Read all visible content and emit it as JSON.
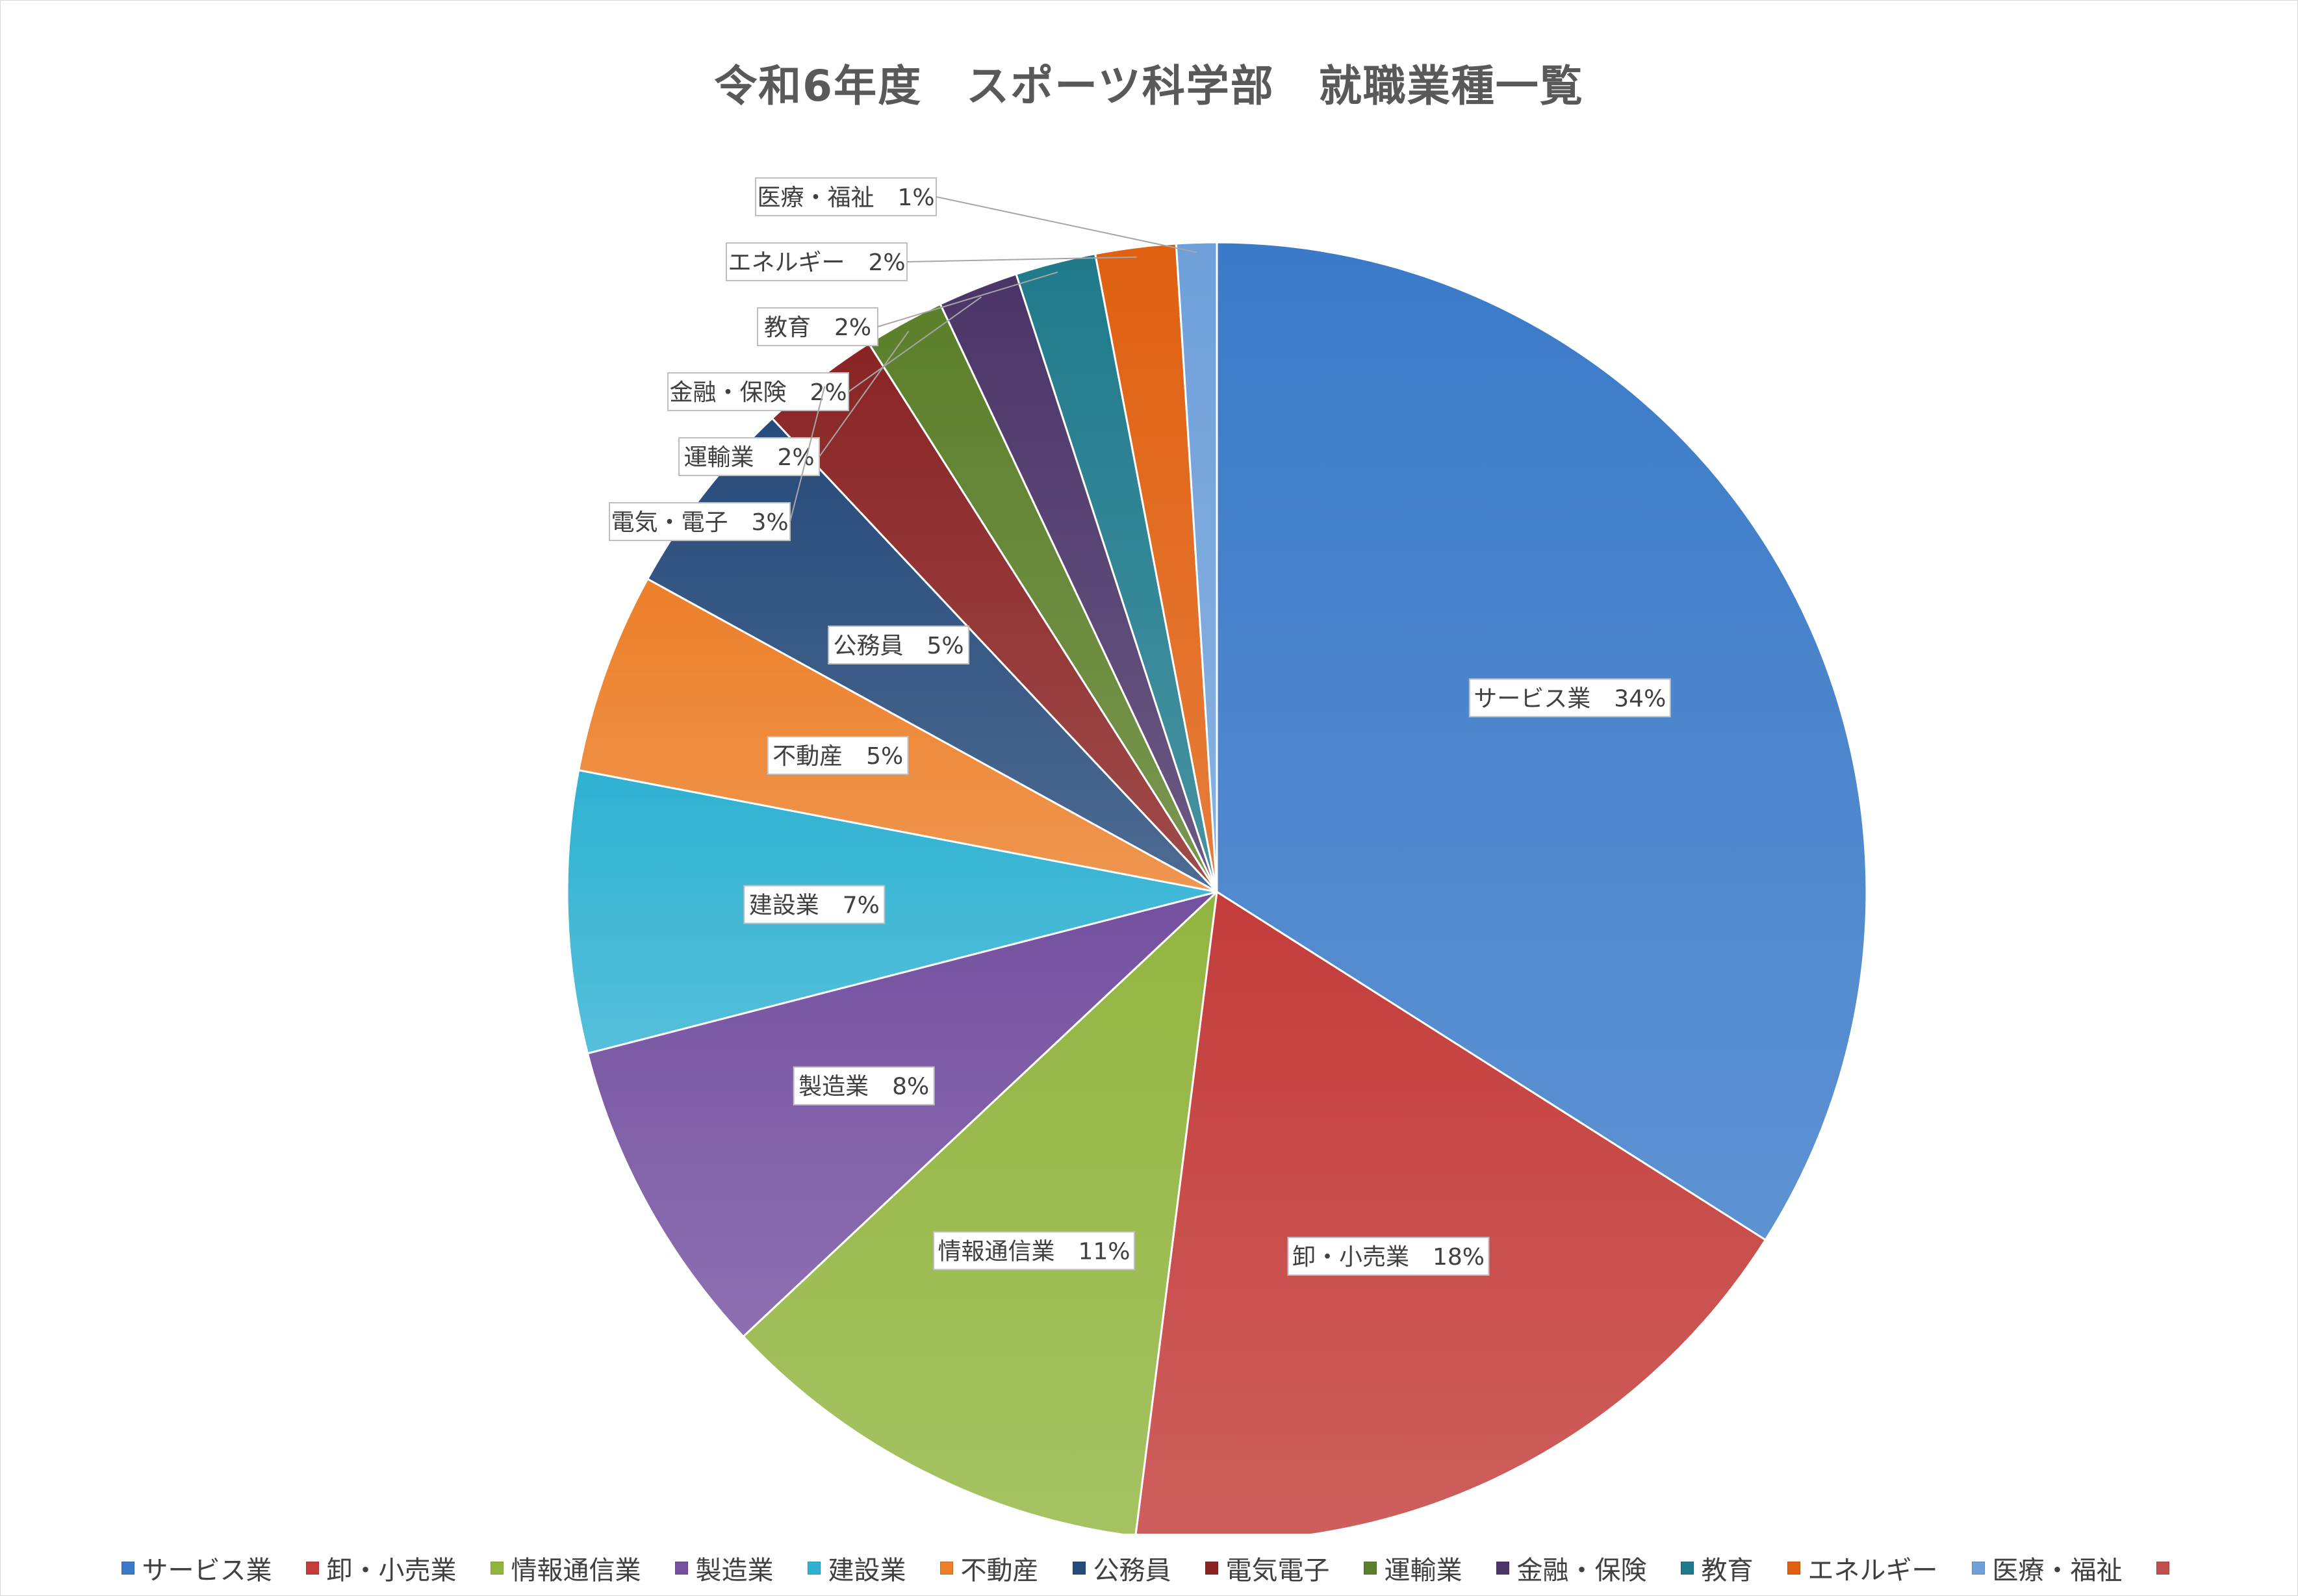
{
  "chart_data": {
    "type": "pie",
    "title": "令和6年度　スポーツ科学部　就職業種一覧",
    "legend_position": "bottom",
    "categories": [
      "サービス業",
      "卸・小売業",
      "情報通信業",
      "製造業",
      "建設業",
      "不動産",
      "公務員",
      "電気電子",
      "運輸業",
      "金融・保険",
      "教育",
      "エネルギー",
      "医療・福祉",
      ""
    ],
    "values": [
      34,
      18,
      11,
      8,
      7,
      5,
      5,
      3,
      2,
      2,
      2,
      2,
      1,
      0
    ],
    "data_labels": [
      "サービス業　34%",
      "卸・小売業　18%",
      "情報通信業　11%",
      "製造業　8%",
      "建設業　7%",
      "不動産　5%",
      "公務員　5%",
      "電気・電子　3%",
      "運輸業　2%",
      "金融・保険　2%",
      "教育　2%",
      "エネルギー　2%",
      "医療・福祉　1%",
      ""
    ],
    "colors": [
      "#3A7AC8",
      "#C33C3A",
      "#92B540",
      "#7450A0",
      "#2FB1D2",
      "#EC7F29",
      "#264A7A",
      "#8A2424",
      "#5C7F2A",
      "#4B3568",
      "#1F7A8C",
      "#E06010",
      "#6FA0DA",
      "#C0504D"
    ]
  }
}
